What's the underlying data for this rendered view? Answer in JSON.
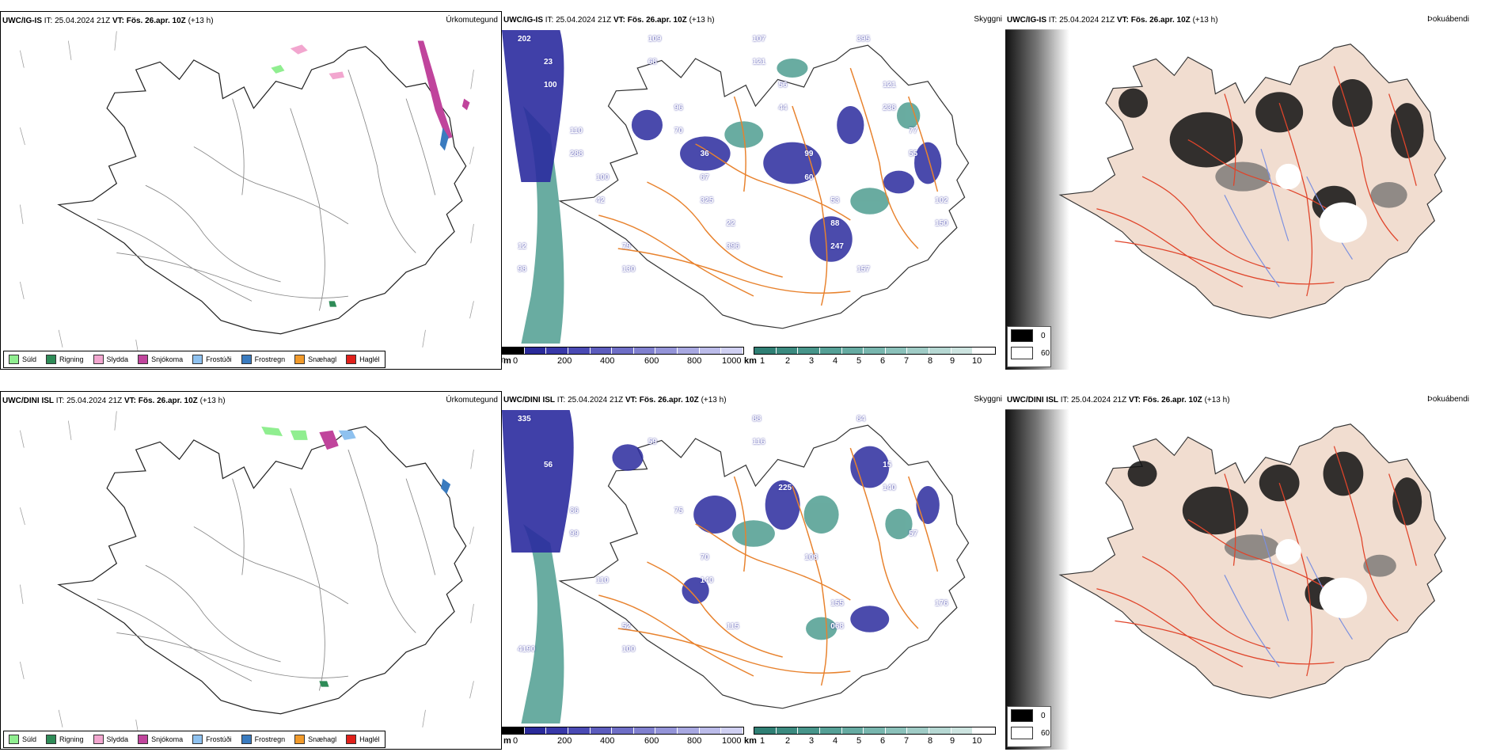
{
  "colors": {
    "sea_fog": "#4f9d90",
    "low_vis": "#2b2b9e",
    "road": "#e8822d",
    "road_red": "#e0442a",
    "river": "#7a8fe0",
    "land_tint": "#f1ddd0",
    "rain": "#2e8b57",
    "drizzle": "#90ee90",
    "sleet": "#f2a6cf",
    "snow": "#c0449c",
    "freezing_drizzle": "#8ec1ef",
    "freezing_rain": "#3a7bbf",
    "snow_grains": "#f19a2a",
    "hail": "#e0201a"
  },
  "rows": [
    {
      "model": "UWC/IG-IS",
      "it_label": "IT:",
      "it_value": "25.04.2024 21Z",
      "vt_label": "VT:",
      "vt_value": "Fös. 26.apr. 10Z",
      "lead": "(+13 h)",
      "panel_titles": [
        "Úrkomutegund",
        "Skyggni",
        "Þokuábendi"
      ],
      "vis_labels": [
        "202",
        "247",
        "325",
        "288",
        "238",
        "121",
        "130",
        "150",
        "60",
        "70",
        "100",
        "395",
        "396",
        "42",
        "55",
        "44",
        "68",
        "98",
        "88",
        "67",
        "110",
        "121",
        "107",
        "79",
        "102",
        "99",
        "96",
        "23",
        "157",
        "22",
        "100",
        "77",
        "56",
        "109",
        "12",
        "53",
        "36"
      ]
    },
    {
      "model": "UWC/DINI ISL",
      "it_label": "IT:",
      "it_value": "25.04.2024 21Z",
      "vt_label": "VT:",
      "vt_value": "Fös. 26.apr. 10Z",
      "lead": "(+13 h)",
      "panel_titles": [
        "Úrkomutegund",
        "Skyggni",
        "Þokuábendi"
      ],
      "vis_labels": [
        "335",
        "068",
        "140",
        "99",
        "140",
        "116",
        "100",
        "176",
        "108",
        "75",
        "56",
        "84",
        "115",
        "110",
        "57",
        "225",
        "59",
        "4190",
        "155",
        "70",
        "86",
        "15",
        "88",
        "52"
      ]
    }
  ],
  "precip_legend": [
    {
      "label": "Súld",
      "color": "#90ee90",
      "icon": "drizzle-swatch"
    },
    {
      "label": "Rigning",
      "color": "#2e8b57",
      "icon": "rain-swatch"
    },
    {
      "label": "Slydda",
      "color": "#f2a6cf",
      "icon": "sleet-swatch"
    },
    {
      "label": "Snjókoma",
      "color": "#c0449c",
      "icon": "snow-swatch"
    },
    {
      "label": "Frostúði",
      "color": "#8ec1ef",
      "icon": "freezing-drizzle-swatch"
    },
    {
      "label": "Frostregn",
      "color": "#3a7bbf",
      "icon": "freezing-rain-swatch"
    },
    {
      "label": "Snæhagl",
      "color": "#f19a2a",
      "icon": "snow-grains-swatch"
    },
    {
      "label": "Haglél",
      "color": "#e0201a",
      "icon": "hail-swatch"
    }
  ],
  "vis_scale_m": {
    "unit": "m",
    "ticks": [
      "0",
      "200",
      "400",
      "600",
      "800",
      "1000"
    ],
    "colors": [
      "#000000",
      "#2a2a9a",
      "#3838a8",
      "#4a4ab4",
      "#5c5cbd",
      "#6e6ec6",
      "#8080cf",
      "#9494d8",
      "#a8a8e1",
      "#bcbcea",
      "#d0d0f2"
    ]
  },
  "vis_scale_km": {
    "unit": "km",
    "ticks": [
      "1",
      "2",
      "3",
      "4",
      "5",
      "6",
      "7",
      "8",
      "9",
      "10"
    ],
    "colors": [
      "#2f7f74",
      "#3b8a7f",
      "#47958a",
      "#55a096",
      "#66aba2",
      "#78b6ae",
      "#8bc1ba",
      "#a0ccc6",
      "#b6d8d3",
      "#cde4e0",
      "#ffffff"
    ]
  },
  "fog_legend": [
    {
      "value": "0",
      "color": "#000000"
    },
    {
      "value": "60",
      "color": "#ffffff"
    }
  ]
}
